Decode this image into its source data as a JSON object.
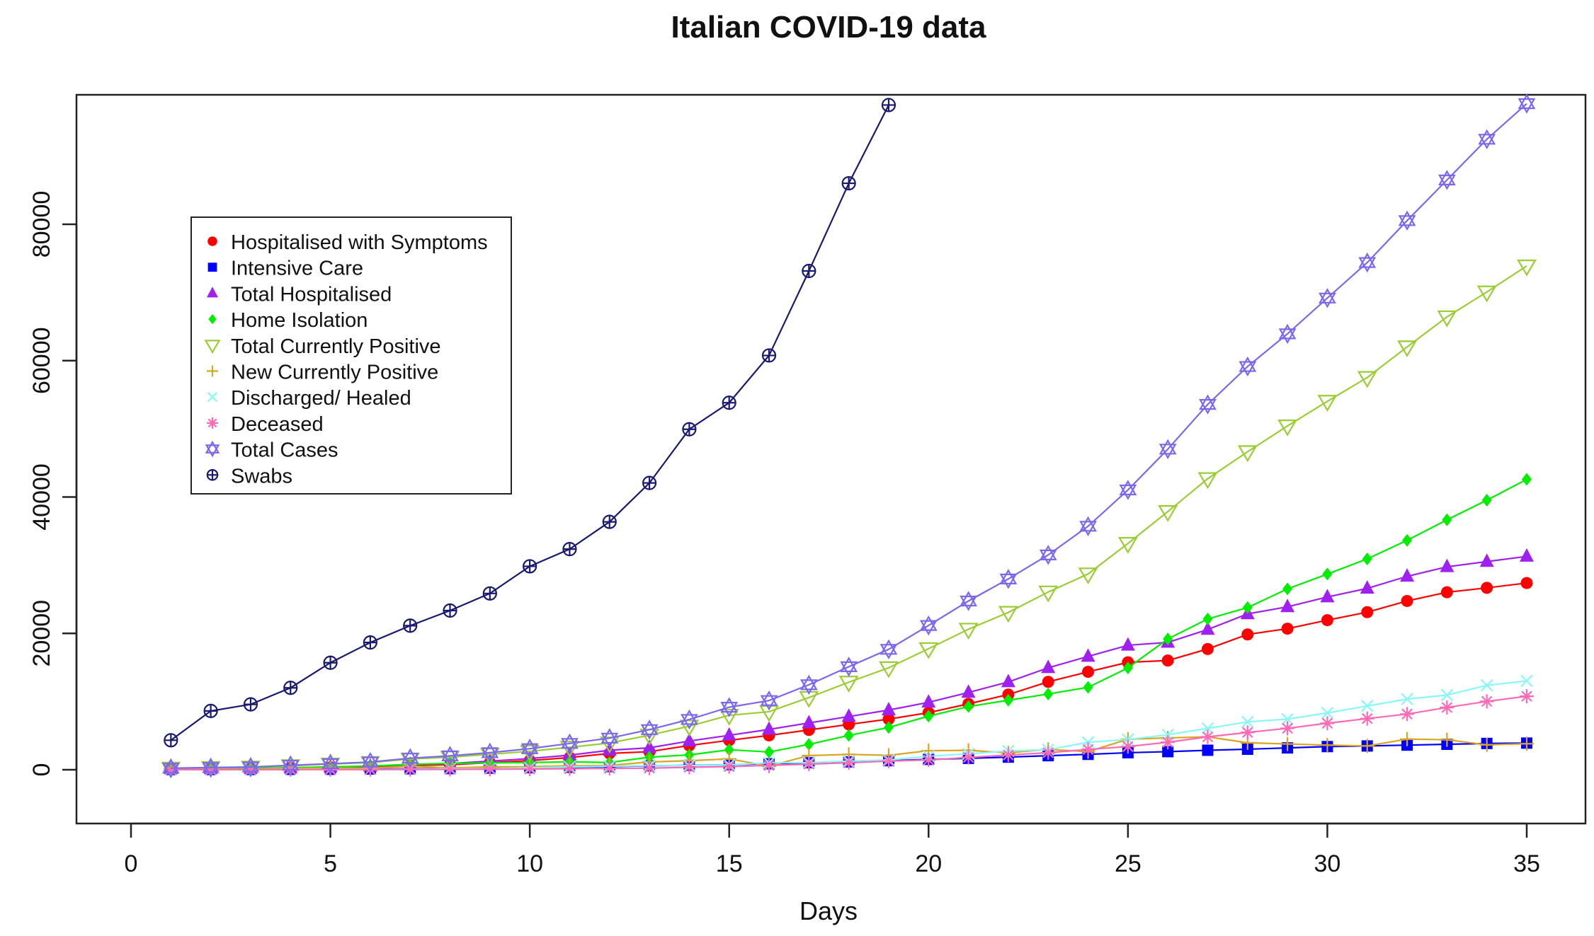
{
  "chart_data": {
    "type": "line",
    "title": "Italian COVID-19 data",
    "xlabel": "Days",
    "ylabel": "",
    "xlim": [
      0,
      35.5
    ],
    "ylim": [
      -4000,
      98000
    ],
    "x_ticks": [
      0,
      5,
      10,
      15,
      20,
      25,
      30,
      35
    ],
    "y_ticks": [
      0,
      20000,
      40000,
      60000,
      80000
    ],
    "grid": false,
    "legend_position": "top-left",
    "series": [
      {
        "name": "Hospitalised with Symptoms",
        "color": "#ff0000",
        "marker": "circle",
        "x": [
          1,
          2,
          3,
          4,
          5,
          6,
          7,
          8,
          9,
          10,
          11,
          12,
          13,
          14,
          15,
          16,
          17,
          18,
          19,
          20,
          21,
          22,
          23,
          24,
          25,
          26,
          27,
          28,
          29,
          30,
          31,
          32,
          33,
          34,
          35
        ],
        "values": [
          100,
          114,
          128,
          248,
          345,
          401,
          639,
          742,
          1034,
          1346,
          1790,
          2394,
          2651,
          3557,
          4316,
          5038,
          5838,
          6650,
          7426,
          8372,
          9663,
          11025,
          12894,
          14363,
          15757,
          16020,
          17708,
          19846,
          20692,
          21937,
          23112,
          24753,
          26029,
          26676,
          27386
        ]
      },
      {
        "name": "Intensive Care",
        "color": "#0000ff",
        "marker": "square",
        "x": [
          1,
          2,
          3,
          4,
          5,
          6,
          7,
          8,
          9,
          10,
          11,
          12,
          13,
          14,
          15,
          16,
          17,
          18,
          19,
          20,
          21,
          22,
          23,
          24,
          25,
          26,
          27,
          28,
          29,
          30,
          31,
          32,
          33,
          34,
          35
        ],
        "values": [
          26,
          35,
          36,
          56,
          64,
          105,
          140,
          166,
          229,
          295,
          351,
          462,
          567,
          650,
          733,
          877,
          1028,
          1153,
          1328,
          1518,
          1672,
          1851,
          2060,
          2257,
          2498,
          2655,
          2857,
          3009,
          3204,
          3396,
          3489,
          3612,
          3732,
          3856,
          3906
        ]
      },
      {
        "name": "Total Hospitalised",
        "color": "#a020f0",
        "marker": "triangle-up",
        "x": [
          1,
          2,
          3,
          4,
          5,
          6,
          7,
          8,
          9,
          10,
          11,
          12,
          13,
          14,
          15,
          16,
          17,
          18,
          19,
          20,
          21,
          22,
          23,
          24,
          25,
          26,
          27,
          28,
          29,
          30,
          31,
          32,
          33,
          34,
          35
        ],
        "values": [
          126,
          150,
          164,
          304,
          409,
          506,
          779,
          908,
          1263,
          1641,
          2141,
          2856,
          3218,
          4207,
          5049,
          5915,
          6866,
          7803,
          8754,
          9890,
          11335,
          12876,
          14954,
          16620,
          18255,
          18675,
          20565,
          22855,
          23896,
          25333,
          26601,
          28365,
          29761,
          30532,
          31292
        ]
      },
      {
        "name": "Home Isolation",
        "color": "#00ee00",
        "marker": "diamond",
        "x": [
          1,
          2,
          3,
          4,
          5,
          6,
          7,
          8,
          9,
          10,
          11,
          12,
          13,
          14,
          15,
          16,
          17,
          18,
          19,
          20,
          21,
          22,
          23,
          24,
          25,
          26,
          27,
          28,
          29,
          30,
          31,
          32,
          33,
          34,
          35
        ],
        "values": [
          95,
          162,
          221,
          284,
          412,
          543,
          798,
          927,
          1000,
          1065,
          1155,
          1060,
          1843,
          2180,
          2936,
          2599,
          3724,
          5036,
          6201,
          7860,
          9268,
          10197,
          11108,
          12090,
          14935,
          19185,
          22116,
          23783,
          26522,
          28697,
          30920,
          33648,
          36653,
          39533,
          42588
        ]
      },
      {
        "name": "Total Currently Positive",
        "color": "#9acd32",
        "marker": "triangle-down",
        "x": [
          1,
          2,
          3,
          4,
          5,
          6,
          7,
          8,
          9,
          10,
          11,
          12,
          13,
          14,
          15,
          16,
          17,
          18,
          19,
          20,
          21,
          22,
          23,
          24,
          25,
          26,
          27,
          28,
          29,
          30,
          31,
          32,
          33,
          34,
          35
        ],
        "values": [
          221,
          311,
          385,
          588,
          821,
          1049,
          1577,
          1835,
          2263,
          2706,
          3296,
          3916,
          5061,
          6387,
          7985,
          8514,
          10590,
          12839,
          14955,
          17750,
          20603,
          23073,
          26062,
          28710,
          33190,
          37860,
          42681,
          46638,
          50418,
          54030,
          57521,
          62013,
          66414,
          70065,
          73880
        ]
      },
      {
        "name": "New Currently Positive",
        "color": "#daa520",
        "marker": "plus",
        "x": [
          1,
          2,
          3,
          4,
          5,
          6,
          7,
          8,
          9,
          10,
          11,
          12,
          13,
          14,
          15,
          16,
          17,
          18,
          19,
          20,
          21,
          22,
          23,
          24,
          25,
          26,
          27,
          28,
          29,
          30,
          31,
          32,
          33,
          34,
          35
        ],
        "values": [
          221,
          90,
          74,
          203,
          233,
          228,
          528,
          258,
          428,
          443,
          590,
          620,
          1145,
          1326,
          1598,
          529,
          2076,
          2249,
          2116,
          2795,
          2853,
          2470,
          2989,
          2648,
          4480,
          4670,
          4821,
          3957,
          3780,
          3612,
          3491,
          4492,
          4401,
          3651,
          3815
        ]
      },
      {
        "name": "Discharged/ Healed",
        "color": "#87f7f7",
        "marker": "x",
        "x": [
          1,
          2,
          3,
          4,
          5,
          6,
          7,
          8,
          9,
          10,
          11,
          12,
          13,
          14,
          15,
          16,
          17,
          18,
          19,
          20,
          21,
          22,
          23,
          24,
          25,
          26,
          27,
          28,
          29,
          30,
          31,
          32,
          33,
          34,
          35
        ],
        "values": [
          1,
          1,
          3,
          45,
          46,
          50,
          83,
          149,
          160,
          276,
          414,
          523,
          589,
          622,
          724,
          1004,
          1045,
          1258,
          1439,
          1966,
          2335,
          2749,
          2941,
          4025,
          4440,
          5129,
          6072,
          7024,
          7432,
          8326,
          9362,
          10361,
          10950,
          12384,
          13030
        ]
      },
      {
        "name": "Deceased",
        "color": "#ff69b4",
        "marker": "asterisk",
        "x": [
          1,
          2,
          3,
          4,
          5,
          6,
          7,
          8,
          9,
          10,
          11,
          12,
          13,
          14,
          15,
          16,
          17,
          18,
          19,
          20,
          21,
          22,
          23,
          24,
          25,
          26,
          27,
          28,
          29,
          30,
          31,
          32,
          33,
          34,
          35
        ],
        "values": [
          7,
          10,
          12,
          17,
          21,
          29,
          34,
          52,
          79,
          107,
          148,
          197,
          233,
          366,
          463,
          631,
          827,
          1016,
          1266,
          1441,
          1809,
          2158,
          2503,
          2978,
          3405,
          4032,
          4825,
          5476,
          6077,
          6820,
          7503,
          8165,
          9134,
          10023,
          10779
        ]
      },
      {
        "name": "Total Cases",
        "color": "#7b68ee",
        "marker": "star-of-david",
        "x": [
          1,
          2,
          3,
          4,
          5,
          6,
          7,
          8,
          9,
          10,
          11,
          12,
          13,
          14,
          15,
          16,
          17,
          18,
          19,
          20,
          21,
          22,
          23,
          24,
          25,
          26,
          27,
          28,
          29,
          30,
          31,
          32,
          33,
          34,
          35
        ],
        "values": [
          229,
          322,
          400,
          650,
          888,
          1128,
          1694,
          2036,
          2502,
          3089,
          3858,
          4636,
          5883,
          7375,
          9172,
          10149,
          12462,
          15113,
          17660,
          21157,
          24747,
          27980,
          31506,
          35713,
          41035,
          47021,
          53578,
          59138,
          63927,
          69176,
          74386,
          80539,
          86498,
          92472,
          97689
        ]
      },
      {
        "name": "Swabs",
        "color": "#191970",
        "marker": "circle-plus",
        "x": [
          1,
          2,
          3,
          4,
          5,
          6,
          7,
          8,
          9,
          10,
          11,
          12,
          13,
          14,
          15,
          16,
          17,
          18,
          19,
          20,
          21,
          22,
          23,
          24,
          25,
          26,
          27,
          28,
          29,
          30,
          31,
          32,
          33,
          34,
          35
        ],
        "values": [
          4324,
          8623,
          9587,
          12014,
          15695,
          18661,
          21127,
          23345,
          25856,
          29837,
          32362,
          36359,
          42062,
          49937,
          53826,
          60761,
          73154,
          86011,
          97488,
          null,
          null,
          null,
          null,
          null,
          null,
          null,
          null,
          null,
          null,
          null,
          null,
          null,
          null,
          null,
          null
        ]
      }
    ]
  }
}
